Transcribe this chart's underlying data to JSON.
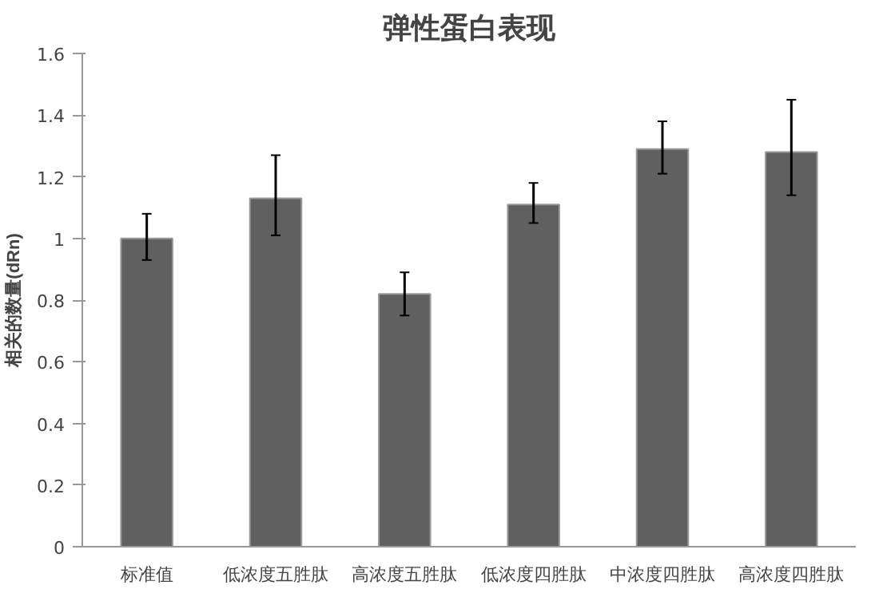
{
  "chart_data": {
    "type": "bar",
    "title": "弹性蛋白表现",
    "ylabel": "相关的数量(dRn)",
    "categories": [
      "标准值",
      "低浓度五胜肽",
      "高浓度五胜肽",
      "低浓度四胜肽",
      "中浓度四胜肽",
      "高浓度四胜肽"
    ],
    "values": [
      1.0,
      1.13,
      0.82,
      1.11,
      1.29,
      1.28
    ],
    "errors": [
      [
        0.93,
        1.08
      ],
      [
        1.01,
        1.27
      ],
      [
        0.75,
        0.89
      ],
      [
        1.05,
        1.18
      ],
      [
        1.21,
        1.38
      ],
      [
        1.14,
        1.45
      ]
    ],
    "color": "#606060",
    "ylim": [
      0,
      1.6
    ],
    "yticks": [
      0,
      0.2,
      0.4,
      0.6,
      0.8,
      1,
      1.2,
      1.4,
      1.6
    ],
    "grid": false
  }
}
